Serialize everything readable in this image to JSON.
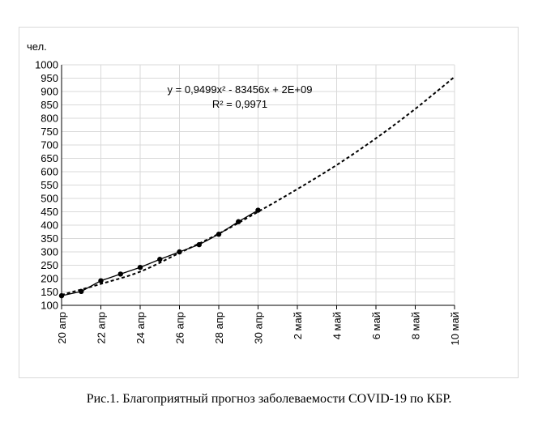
{
  "caption": "Рис.1. Благоприятный прогноз заболеваемости COVID-19 по КБР.",
  "chart_data": {
    "type": "scatter",
    "title": "",
    "ylabel": "чел.",
    "xlabel": "",
    "ylim": [
      100,
      1000
    ],
    "y_ticks": [
      100,
      150,
      200,
      250,
      300,
      350,
      400,
      450,
      500,
      550,
      600,
      650,
      700,
      750,
      800,
      850,
      900,
      950,
      1000
    ],
    "x_range_days": [
      20,
      40
    ],
    "x_ticks": [
      {
        "day": 20,
        "label": "20 апр"
      },
      {
        "day": 22,
        "label": "22 апр"
      },
      {
        "day": 24,
        "label": "24 апр"
      },
      {
        "day": 26,
        "label": "26 апр"
      },
      {
        "day": 28,
        "label": "28 апр"
      },
      {
        "day": 30,
        "label": "30 апр"
      },
      {
        "day": 32,
        "label": "2 май"
      },
      {
        "day": 34,
        "label": "4 май"
      },
      {
        "day": 36,
        "label": "6 май"
      },
      {
        "day": 38,
        "label": "8 май"
      },
      {
        "day": 40,
        "label": "10 май"
      }
    ],
    "grid": true,
    "series": [
      {
        "points": [
          {
            "day": 20,
            "y": 136
          },
          {
            "day": 21,
            "y": 152
          },
          {
            "day": 22,
            "y": 192
          },
          {
            "day": 23,
            "y": 217
          },
          {
            "day": 24,
            "y": 242
          },
          {
            "day": 25,
            "y": 272
          },
          {
            "day": 26,
            "y": 300
          },
          {
            "day": 27,
            "y": 327
          },
          {
            "day": 28,
            "y": 366
          },
          {
            "day": 29,
            "y": 413
          },
          {
            "day": 30,
            "y": 456
          }
        ]
      }
    ],
    "trendline": {
      "equation": "y = 0,9499x² - 83456x + 2E+09",
      "r_squared": "R² = 0,9971",
      "points": [
        {
          "day": 20,
          "y": 139
        },
        {
          "day": 22,
          "y": 180
        },
        {
          "day": 24,
          "y": 226
        },
        {
          "day": 26,
          "y": 296
        },
        {
          "day": 28,
          "y": 368
        },
        {
          "day": 30,
          "y": 450
        },
        {
          "day": 32,
          "y": 535
        },
        {
          "day": 34,
          "y": 625
        },
        {
          "day": 36,
          "y": 725
        },
        {
          "day": 38,
          "y": 835
        },
        {
          "day": 40,
          "y": 955
        }
      ]
    }
  }
}
